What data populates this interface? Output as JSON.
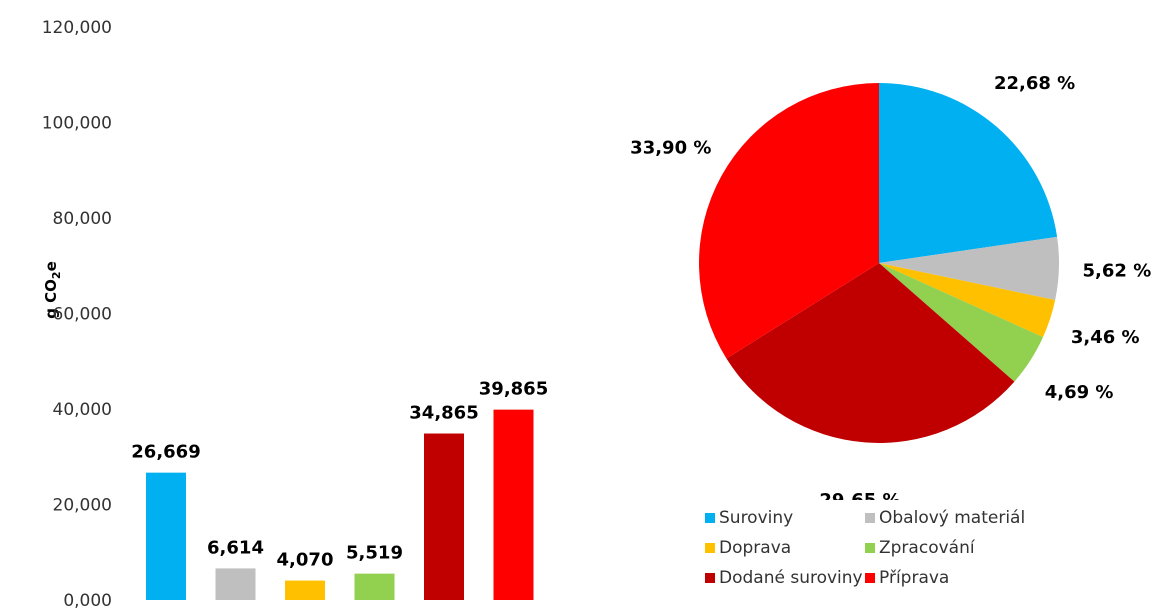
{
  "chart_data": [
    {
      "type": "bar",
      "ylabel_main": "g CO",
      "ylabel_sub": "2",
      "ylabel_tail": "e",
      "ylim": [
        0,
        120000
      ],
      "yticks": [
        0,
        20000,
        40000,
        60000,
        80000,
        100000,
        120000
      ],
      "ytick_labels": [
        "0,000",
        "20,000",
        "40,000",
        "60,000",
        "80,000",
        "100,000",
        "120,000"
      ],
      "categories": [
        "Suroviny",
        "Obalový materiál",
        "Doprava",
        "Zpracování",
        "Dodané suroviny",
        "Příprava"
      ],
      "values": [
        26669,
        6614,
        4070,
        5519,
        34865,
        39865
      ],
      "value_labels": [
        "26,669",
        "6,614",
        "4,070",
        "5,519",
        "34,865",
        "39,865"
      ],
      "colors": [
        "#00b0f0",
        "#bfbfbf",
        "#ffc000",
        "#92d050",
        "#c00000",
        "#ff0000"
      ],
      "grid": false,
      "legend": "none"
    },
    {
      "type": "pie",
      "categories": [
        "Suroviny",
        "Obalový materiál",
        "Doprava",
        "Zpracování",
        "Dodané suroviny",
        "Příprava"
      ],
      "values": [
        22.68,
        5.62,
        3.46,
        4.69,
        29.65,
        33.9
      ],
      "value_labels": [
        "22,68 %",
        "5,62 %",
        "3,46 %",
        "4,69 %",
        "29,65 %",
        "33,90 %"
      ],
      "colors": [
        "#00b0f0",
        "#bfbfbf",
        "#ffc000",
        "#92d050",
        "#c00000",
        "#ff0000"
      ],
      "legend": "bottom"
    }
  ]
}
